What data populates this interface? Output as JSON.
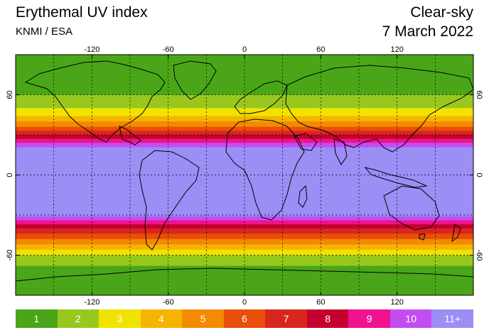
{
  "header": {
    "title": "Erythemal UV index",
    "source": "KNMI / ESA",
    "condition": "Clear-sky",
    "date": "7 March 2022"
  },
  "map": {
    "lon_ticks": [
      "-120",
      "-60",
      "0",
      "60",
      "120"
    ],
    "lat_ticks": [
      "60",
      "0",
      "-60"
    ],
    "ocean_tropics_color": "#9b8ef5",
    "bands_north": [
      {
        "lat_from": 90,
        "lat_to": 60,
        "uv": 1
      },
      {
        "lat_from": 60,
        "lat_to": 50,
        "uv": 2
      },
      {
        "lat_from": 50,
        "lat_to": 44,
        "uv": 3
      },
      {
        "lat_from": 44,
        "lat_to": 40,
        "uv": 4
      },
      {
        "lat_from": 40,
        "lat_to": 36,
        "uv": 5
      },
      {
        "lat_from": 36,
        "lat_to": 33,
        "uv": 6
      },
      {
        "lat_from": 33,
        "lat_to": 30,
        "uv": 7
      },
      {
        "lat_from": 30,
        "lat_to": 27,
        "uv": 8
      },
      {
        "lat_from": 27,
        "lat_to": 24,
        "uv": 9
      },
      {
        "lat_from": 24,
        "lat_to": 21,
        "uv": 10
      }
    ],
    "bands_south": [
      {
        "lat_from": -31,
        "lat_to": -34,
        "uv": 10
      },
      {
        "lat_from": -34,
        "lat_to": -37,
        "uv": 9
      },
      {
        "lat_from": -37,
        "lat_to": -40,
        "uv": 8
      },
      {
        "lat_from": -40,
        "lat_to": -44,
        "uv": 7
      },
      {
        "lat_from": -44,
        "lat_to": -48,
        "uv": 6
      },
      {
        "lat_from": -48,
        "lat_to": -52,
        "uv": 5
      },
      {
        "lat_from": -52,
        "lat_to": -56,
        "uv": 4
      },
      {
        "lat_from": -56,
        "lat_to": -60,
        "uv": 3
      },
      {
        "lat_from": -60,
        "lat_to": -68,
        "uv": 2
      },
      {
        "lat_from": -68,
        "lat_to": -90,
        "uv": 1
      }
    ]
  },
  "legend": {
    "items": [
      {
        "label": "1",
        "color": "#4aa618"
      },
      {
        "label": "2",
        "color": "#98c81e"
      },
      {
        "label": "3",
        "color": "#f2e200"
      },
      {
        "label": "4",
        "color": "#f5b400"
      },
      {
        "label": "5",
        "color": "#f38a00"
      },
      {
        "label": "6",
        "color": "#e94e0c"
      },
      {
        "label": "7",
        "color": "#d9261c"
      },
      {
        "label": "8",
        "color": "#c4002e"
      },
      {
        "label": "9",
        "color": "#f0138f"
      },
      {
        "label": "10",
        "color": "#c24ef2"
      },
      {
        "label": "11+",
        "color": "#9b8ef5"
      }
    ]
  }
}
